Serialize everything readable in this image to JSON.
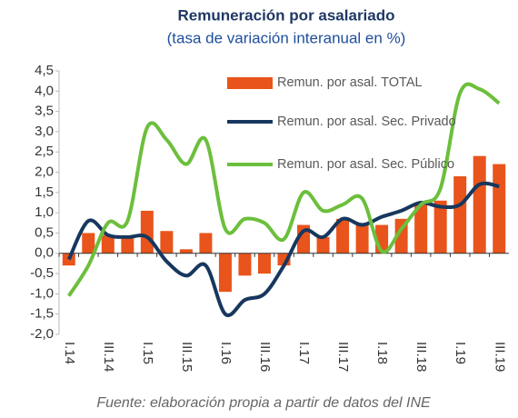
{
  "chart_data": {
    "type": "bar_line",
    "title": "Remuneración por asalariado",
    "subtitle": "(tasa de variación interanual en %)",
    "source": "Fuente: elaboración propia a partir de datos del INE",
    "categories": [
      "I.14",
      null,
      "III.14",
      null,
      "I.15",
      null,
      "III.15",
      null,
      "I.16",
      null,
      "III.16",
      null,
      "I.17",
      null,
      "III.17",
      null,
      "I.18",
      null,
      "III.18",
      null,
      "I.19",
      null,
      "III.19"
    ],
    "series": [
      {
        "name": "Remun. por asal. TOTAL",
        "kind": "bar",
        "color": "#e8541b",
        "values": [
          -0.3,
          0.5,
          0.45,
          0.4,
          1.05,
          0.55,
          0.1,
          0.5,
          -0.95,
          -0.55,
          -0.5,
          -0.3,
          0.7,
          0.4,
          0.85,
          0.75,
          0.7,
          0.85,
          1.2,
          1.3,
          1.9,
          2.4,
          2.2
        ]
      },
      {
        "name": "Remun. por asal. Sec. Privado",
        "kind": "line",
        "color": "#17375e",
        "values": [
          -0.15,
          0.8,
          0.45,
          0.4,
          0.4,
          -0.2,
          -0.55,
          -0.3,
          -1.5,
          -1.15,
          -1.0,
          -0.3,
          0.55,
          0.4,
          0.85,
          0.7,
          0.9,
          1.05,
          1.25,
          1.15,
          1.2,
          1.7,
          1.65
        ]
      },
      {
        "name": "Remun. por asal. Sec. Público",
        "kind": "line",
        "color": "#6cbf3c",
        "values": [
          -1.05,
          -0.3,
          0.75,
          0.8,
          3.1,
          2.8,
          2.2,
          2.8,
          0.6,
          0.85,
          0.75,
          0.35,
          1.5,
          1.05,
          1.2,
          1.35,
          0.05,
          0.6,
          1.2,
          1.6,
          3.95,
          4.05,
          3.7
        ]
      }
    ],
    "ylim": [
      -2.0,
      4.5
    ],
    "yticks": [
      {
        "value": -2.0,
        "label": "-2,0"
      },
      {
        "value": -1.5,
        "label": "-1,5"
      },
      {
        "value": -1.0,
        "label": "-1,0"
      },
      {
        "value": -0.5,
        "label": "-0,5"
      },
      {
        "value": 0.0,
        "label": "0,0"
      },
      {
        "value": 0.5,
        "label": "0,5"
      },
      {
        "value": 1.0,
        "label": "1,0"
      },
      {
        "value": 1.5,
        "label": "1,5"
      },
      {
        "value": 2.0,
        "label": "2,0"
      },
      {
        "value": 2.5,
        "label": "2,5"
      },
      {
        "value": 3.0,
        "label": "3,0"
      },
      {
        "value": 3.5,
        "label": "3,5"
      },
      {
        "value": 4.0,
        "label": "4,0"
      },
      {
        "value": 4.5,
        "label": "4,5"
      }
    ],
    "grid": false,
    "legend": "upper right"
  }
}
